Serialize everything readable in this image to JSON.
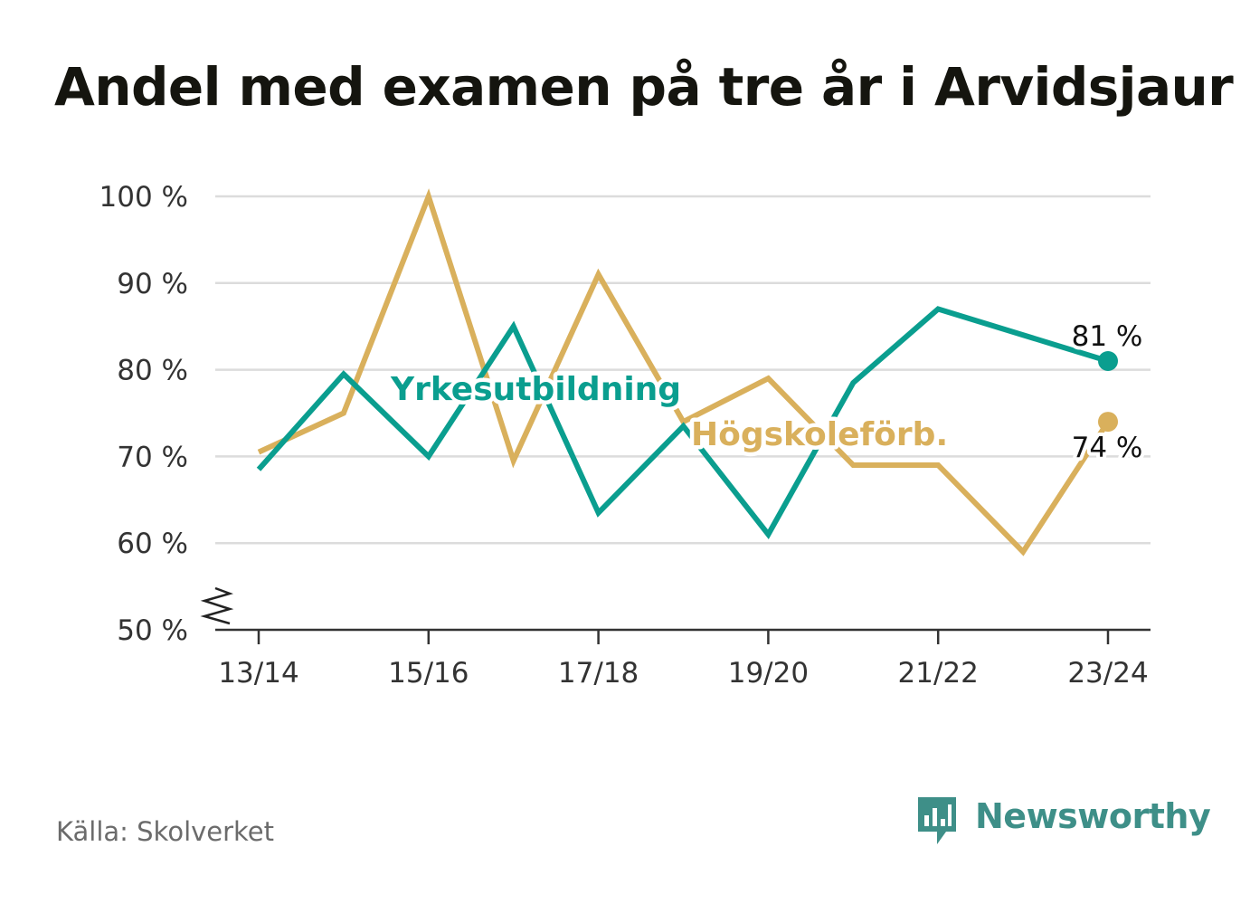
{
  "title": "Andel med examen på tre år i Arvidsjaur",
  "source": "Källa: Skolverket",
  "brand": {
    "name": "Newsworthy",
    "icon": "bar-chart-speech-bubble-icon",
    "color": "#3e8f88"
  },
  "chart_data": {
    "type": "line",
    "x": [
      "13/14",
      "14/15",
      "15/16",
      "16/17",
      "17/18",
      "18/19",
      "19/20",
      "20/21",
      "21/22",
      "22/23",
      "23/24"
    ],
    "xticks": [
      "13/14",
      "15/16",
      "17/18",
      "19/20",
      "21/22",
      "23/24"
    ],
    "ylim": [
      50,
      100
    ],
    "yticks": [
      {
        "value": 100,
        "label": "100 %"
      },
      {
        "value": 90,
        "label": "90 %"
      },
      {
        "value": 80,
        "label": "80 %"
      },
      {
        "value": 70,
        "label": "70 %"
      },
      {
        "value": 60,
        "label": "60 %"
      },
      {
        "value": 50,
        "label": "50 %"
      }
    ],
    "y_axis_break": true,
    "grid": true,
    "series": [
      {
        "name": "Högskoleförb.",
        "color": "#d9b05c",
        "values": [
          70.5,
          75,
          100,
          69.5,
          91,
          74,
          79,
          69,
          69,
          59,
          74
        ],
        "end_label": "74 %"
      },
      {
        "name": "Yrkesutbildning",
        "color": "#0a9e8f",
        "values": [
          68.5,
          79.5,
          70,
          85,
          63.5,
          73.5,
          61,
          78.5,
          87,
          null,
          81
        ],
        "end_label": "81 %"
      }
    ]
  }
}
